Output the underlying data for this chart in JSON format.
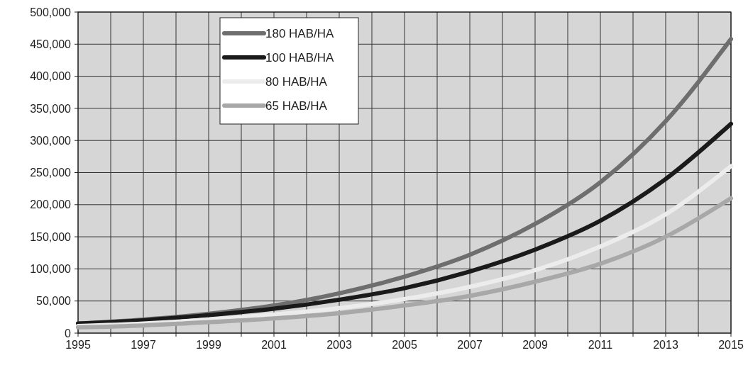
{
  "chart_data": {
    "type": "line",
    "x": [
      1995,
      1997,
      1999,
      2001,
      2003,
      2005,
      2007,
      2009,
      2011,
      2013,
      2015
    ],
    "series": [
      {
        "name": "180 HAB/HA",
        "color": "#6e6e6e",
        "values": [
          15000,
          21000,
          30000,
          43000,
          62000,
          88000,
          122000,
          170000,
          235000,
          330000,
          458000
        ]
      },
      {
        "name": "100 HAB/HA",
        "color": "#1a1a1a",
        "values": [
          15000,
          20000,
          28000,
          38000,
          52000,
          70000,
          96000,
          130000,
          175000,
          240000,
          326000
        ]
      },
      {
        "name": "80 HAB/HA",
        "color": "#ececec",
        "values": [
          11000,
          15000,
          21000,
          29000,
          39000,
          53000,
          72000,
          98000,
          135000,
          185000,
          260000
        ]
      },
      {
        "name": "65 HAB/HA",
        "color": "#a8a8a8",
        "values": [
          9000,
          12000,
          17000,
          23000,
          31000,
          43000,
          58000,
          80000,
          108000,
          150000,
          210000
        ]
      }
    ],
    "xlim": [
      1995,
      2015
    ],
    "xticks": [
      1995,
      {
        "value": 1996,
        "label": null
      },
      1997,
      {
        "value": 1998,
        "label": null
      },
      1999,
      {
        "value": 2000,
        "label": null
      },
      2001,
      {
        "value": 2002,
        "label": null
      },
      2003,
      {
        "value": 2004,
        "label": null
      },
      2005,
      {
        "value": 2006,
        "label": null
      },
      2007,
      {
        "value": 2008,
        "label": null
      },
      2009,
      {
        "value": 2010,
        "label": null
      },
      2011,
      {
        "value": 2012,
        "label": null
      },
      2013,
      {
        "value": 2014,
        "label": null
      },
      2015
    ],
    "ylim": [
      0,
      500000
    ],
    "yticks": [
      {
        "value": 0,
        "label": "0"
      },
      {
        "value": 50000,
        "label": "50,000"
      },
      {
        "value": 100000,
        "label": "100,000"
      },
      {
        "value": 150000,
        "label": "150,000"
      },
      {
        "value": 200000,
        "label": "200,000"
      },
      {
        "value": 250000,
        "label": "250,000"
      },
      {
        "value": 300000,
        "label": "300,000"
      },
      {
        "value": 350000,
        "label": "350,000"
      },
      {
        "value": 400000,
        "label": "400,000"
      },
      {
        "value": 450000,
        "label": "450,000"
      },
      {
        "value": 500000,
        "label": "500,000"
      }
    ],
    "grid": true,
    "legend": "top left",
    "marker": "none",
    "line_style": "solid"
  }
}
